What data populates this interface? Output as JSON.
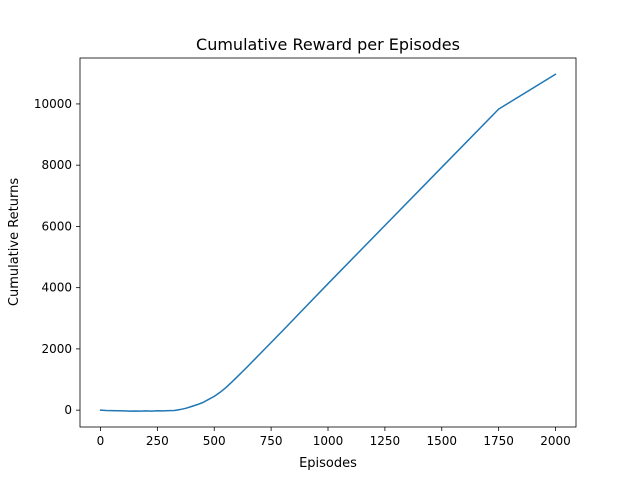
{
  "chart_data": {
    "type": "line",
    "title": "Cumulative Reward per Episodes",
    "xlabel": "Episodes",
    "ylabel": "Cumulative Returns",
    "xlim": [
      -90,
      2090
    ],
    "ylim": [
      -550,
      11500
    ],
    "xticks": [
      0,
      250,
      500,
      750,
      1000,
      1250,
      1500,
      1750,
      2000
    ],
    "yticks": [
      0,
      2000,
      4000,
      6000,
      8000,
      10000
    ],
    "grid": false,
    "line_color": "#1f77b4",
    "series": [
      {
        "x": [
          0,
          25,
          50,
          75,
          100,
          125,
          150,
          175,
          200,
          225,
          250,
          275,
          300,
          325,
          350,
          375,
          400,
          425,
          450,
          475,
          500,
          525,
          550,
          575,
          600,
          650,
          700,
          750,
          800,
          900,
          1000,
          1250,
          1500,
          1750,
          2000
        ],
        "y": [
          0,
          -10,
          -15,
          -20,
          -25,
          -30,
          -28,
          -32,
          -25,
          -30,
          -20,
          -25,
          -15,
          -10,
          20,
          60,
          120,
          180,
          250,
          350,
          450,
          580,
          730,
          900,
          1080,
          1450,
          1830,
          2210,
          2590,
          3360,
          4130,
          6030,
          7930,
          9830,
          10970
        ]
      }
    ]
  }
}
